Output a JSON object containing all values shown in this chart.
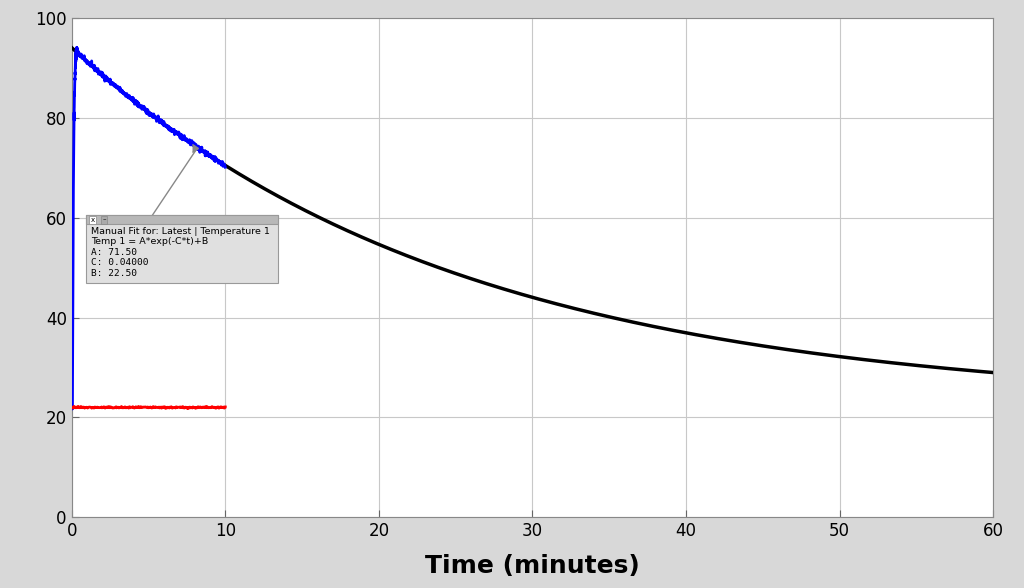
{
  "title": "",
  "xlabel": "Time (minutes)",
  "xlim": [
    0,
    60
  ],
  "ylim": [
    0,
    100
  ],
  "xticks": [
    0,
    10,
    20,
    30,
    40,
    50,
    60
  ],
  "yticks": [
    0,
    20,
    40,
    60,
    80,
    100
  ],
  "bg_color": "#d8d8d8",
  "plot_bg_color": "#ffffff",
  "fit_A": 71.5,
  "fit_C": 0.04,
  "fit_B": 22.5,
  "room_temp": 22.0,
  "data_duration_minutes": 10,
  "rise_time": 0.35,
  "peak_temp": 94.5,
  "initial_temp": 22.0,
  "fit_color": "#000000",
  "data_color": "#0000ff",
  "room_color": "#ff0000",
  "grid_color": "#c8c8c8",
  "xlabel_fontsize": 18,
  "xlabel_fontweight": "bold"
}
